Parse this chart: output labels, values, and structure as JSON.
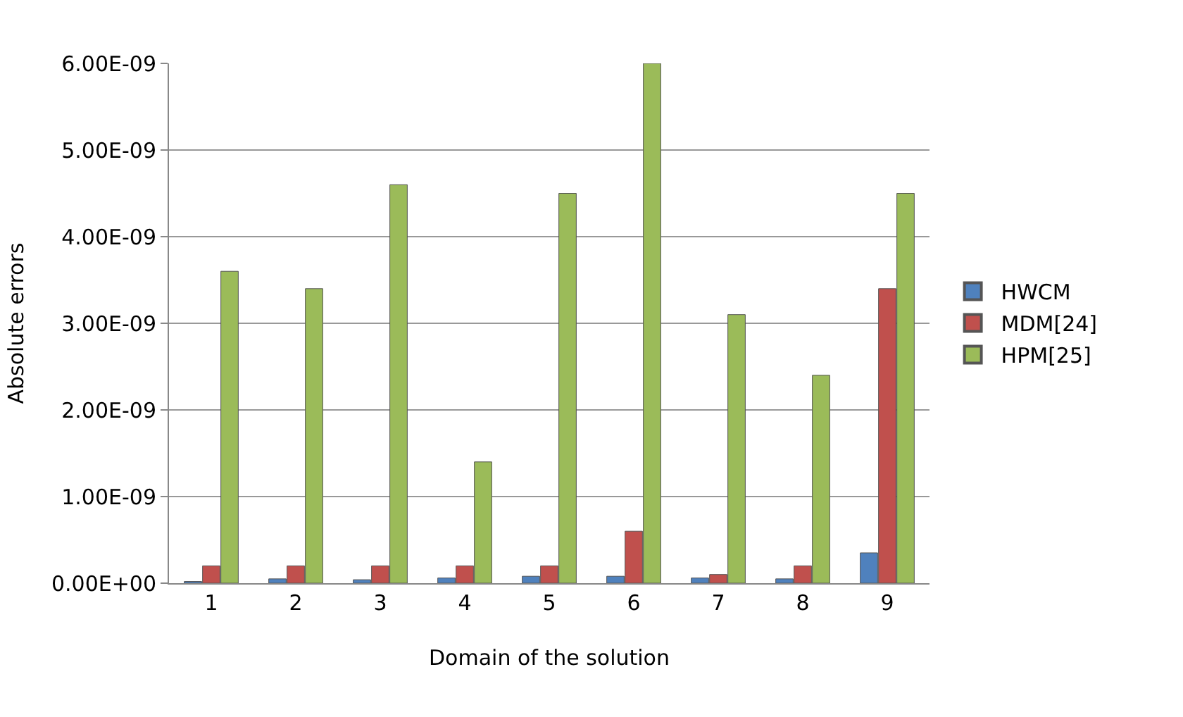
{
  "chart_data": {
    "type": "bar",
    "xlabel": "Domain of the solution",
    "ylabel": "Absolute errors",
    "categories": [
      "1",
      "2",
      "3",
      "4",
      "5",
      "6",
      "7",
      "8",
      "9"
    ],
    "series": [
      {
        "name": "HWCM",
        "color": "#4f81bd",
        "values": [
          2e-11,
          5e-11,
          4e-11,
          6e-11,
          8e-11,
          8e-11,
          6e-11,
          5e-11,
          3.5e-10
        ]
      },
      {
        "name": "MDM[24]",
        "color": "#c0504d",
        "values": [
          2e-10,
          2e-10,
          2e-10,
          2e-10,
          2e-10,
          6e-10,
          1e-10,
          2e-10,
          3.4e-09
        ]
      },
      {
        "name": "HPM[25]",
        "color": "#9bbb59",
        "values": [
          3.6e-09,
          3.4e-09,
          4.6e-09,
          1.4e-09,
          4.5e-09,
          6e-09,
          3.1e-09,
          2.4e-09,
          4.5e-09
        ]
      }
    ],
    "ylim": [
      0,
      6e-09
    ],
    "yticks": [
      {
        "value": 0,
        "label": "0.00E+00"
      },
      {
        "value": 1e-09,
        "label": "1.00E-09"
      },
      {
        "value": 2e-09,
        "label": "2.00E-09"
      },
      {
        "value": 3e-09,
        "label": "3.00E-09"
      },
      {
        "value": 4e-09,
        "label": "4.00E-09"
      },
      {
        "value": 5e-09,
        "label": "5.00E-09"
      },
      {
        "value": 6e-09,
        "label": "6.00E-09"
      }
    ],
    "grid": "y",
    "legend": "right"
  }
}
